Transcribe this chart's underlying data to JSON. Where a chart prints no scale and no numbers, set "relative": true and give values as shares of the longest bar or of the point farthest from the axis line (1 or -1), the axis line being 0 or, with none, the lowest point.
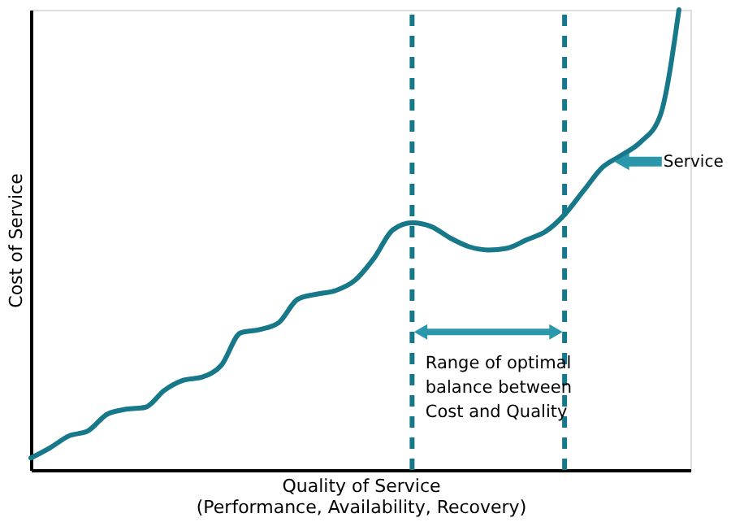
{
  "chart_data": {
    "type": "line",
    "relative": true,
    "xlabel": "Quality of Service\n(Performance, Availability, Recovery)",
    "ylabel": "Cost of Service",
    "categories": [
      null,
      null,
      null,
      null,
      null,
      null,
      null,
      null,
      null,
      null,
      null,
      null,
      null,
      null,
      null,
      null,
      null,
      null,
      null,
      null,
      null,
      null,
      null,
      null,
      null,
      null,
      null,
      null,
      null,
      null,
      null,
      null,
      null,
      null,
      null
    ],
    "values": [
      0.026,
      0.048,
      0.074,
      0.085,
      0.121,
      0.132,
      0.136,
      0.173,
      0.195,
      0.202,
      0.228,
      0.298,
      0.305,
      0.32,
      0.371,
      0.382,
      0.39,
      0.412,
      0.46,
      0.522,
      0.537,
      0.529,
      0.504,
      0.485,
      0.478,
      0.482,
      0.5,
      0.518,
      0.555,
      0.607,
      0.658,
      0.684,
      0.713,
      0.768,
      1.0
    ],
    "color": "#17788a",
    "annotations": [
      "Range of optimal balance between Cost and Quality",
      "Service"
    ]
  }
}
